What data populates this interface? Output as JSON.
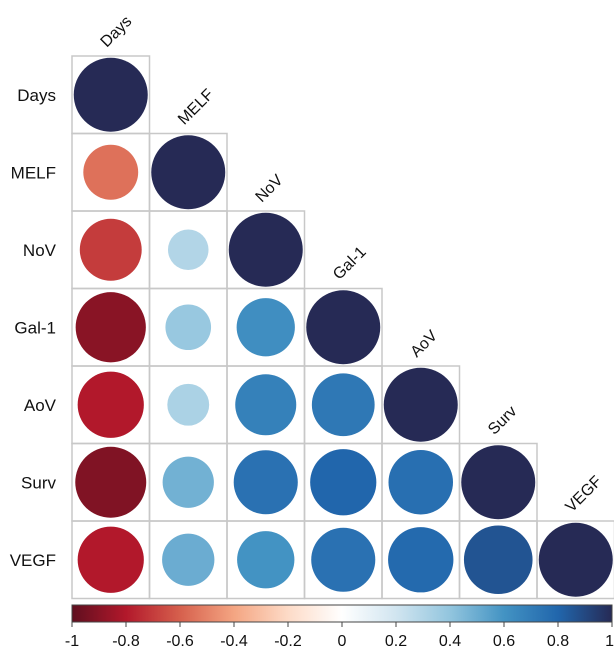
{
  "chart_data": {
    "type": "heatmap",
    "subtype": "correlation-circle-lower-triangle",
    "title": "",
    "xlabel": "",
    "ylabel": "",
    "variables": [
      "Days",
      "MELF",
      "NoV",
      "Gal-1",
      "AoV",
      "Surv",
      "VEGF"
    ],
    "matrix": [
      [
        1.0
      ],
      [
        -0.55,
        1.0
      ],
      [
        -0.7,
        0.3,
        1.0
      ],
      [
        -0.9,
        0.38,
        0.62,
        1.0
      ],
      [
        -0.8,
        0.32,
        0.68,
        0.72,
        1.0
      ],
      [
        -0.92,
        0.48,
        0.75,
        0.8,
        0.76,
        1.0
      ],
      [
        -0.8,
        0.5,
        0.6,
        0.75,
        0.78,
        0.86,
        1.0
      ]
    ],
    "colorbar": {
      "range": [
        -1,
        1
      ],
      "tick_labels": [
        "-1",
        "-0.8",
        "-0.6",
        "-0.4",
        "-0.2",
        "0",
        "0.2",
        "0.4",
        "0.6",
        "0.8",
        "1"
      ],
      "colors": [
        "#5f0f1f",
        "#b2182b",
        "#d6604d",
        "#f4a582",
        "#fddbc7",
        "#ffffff",
        "#d1e5f0",
        "#92c5de",
        "#4393c3",
        "#2166ac",
        "#262a55"
      ]
    },
    "circle_size_encodes": "absolute correlation",
    "grid": true,
    "legend_placement": "bottom"
  }
}
